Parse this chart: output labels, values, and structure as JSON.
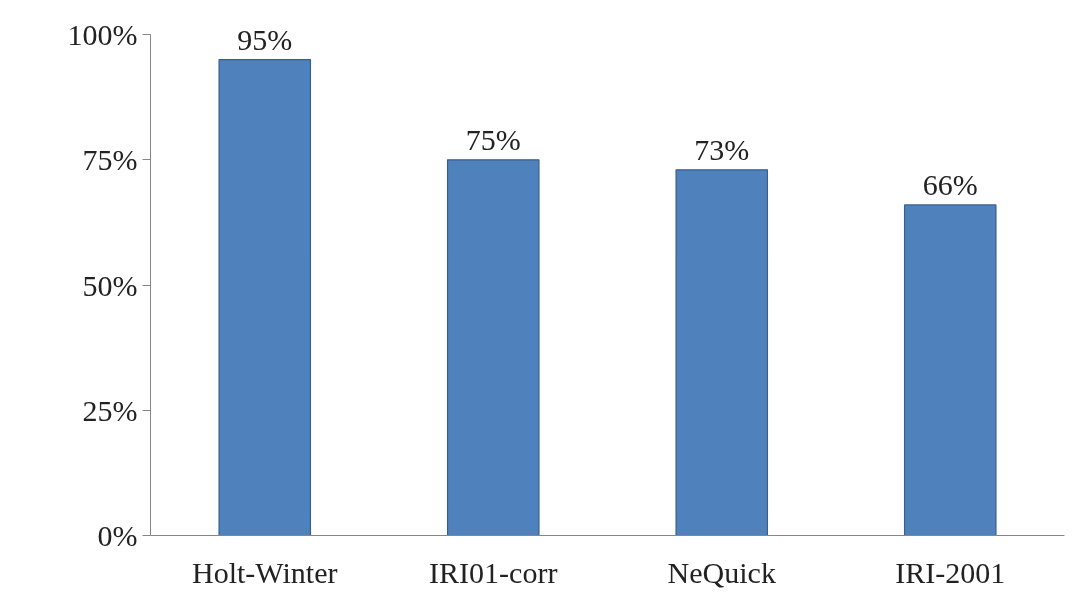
{
  "chart_data": {
    "type": "bar",
    "categories": [
      "Holt-Winter",
      "IRI01-corr",
      "NeQuick",
      "IRI-2001"
    ],
    "values": [
      95,
      75,
      73,
      66
    ],
    "value_labels": [
      "95%",
      "75%",
      "73%",
      "66%"
    ],
    "color": "#4f81bd",
    "ylim": [
      0,
      100
    ],
    "yticks": [
      {
        "value": 0,
        "label": "0%"
      },
      {
        "value": 25,
        "label": "25%"
      },
      {
        "value": 50,
        "label": "50%"
      },
      {
        "value": 75,
        "label": "75%"
      },
      {
        "value": 100,
        "label": "100%"
      }
    ],
    "grid": false
  }
}
